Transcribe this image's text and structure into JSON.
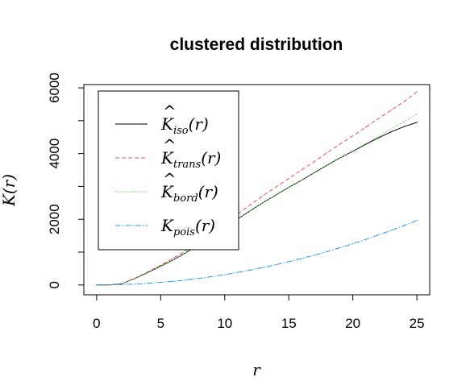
{
  "chart_data": {
    "type": "line",
    "title": "clustered distribution",
    "xlabel": "r",
    "ylabel": "K(r)",
    "xlim": [
      -1,
      26
    ],
    "ylim": [
      -300,
      6100
    ],
    "xticks": [
      0,
      5,
      10,
      15,
      20,
      25
    ],
    "yticks": [
      0,
      2000,
      4000,
      6000
    ],
    "grid": false,
    "legend_position": "top-left",
    "series": [
      {
        "name": "K̂iso(r)",
        "hat": true,
        "base": "K",
        "sub": "iso",
        "color": "#000000",
        "dash": "",
        "x": [
          0,
          1,
          2,
          3,
          4,
          5,
          6,
          7,
          8,
          9,
          10,
          11,
          12,
          13,
          14,
          15,
          16,
          17,
          18,
          19,
          20,
          21,
          22,
          23,
          24,
          25
        ],
        "y": [
          0,
          0,
          40,
          200,
          380,
          570,
          770,
          990,
          1230,
          1480,
          1750,
          2010,
          2260,
          2510,
          2740,
          2970,
          3190,
          3420,
          3650,
          3870,
          4070,
          4280,
          4480,
          4660,
          4820,
          4950
        ]
      },
      {
        "name": "K̂trans(r)",
        "hat": true,
        "base": "K",
        "sub": "trans",
        "color": "#df536b",
        "dash": "5,3",
        "x": [
          0,
          1,
          2,
          3,
          4,
          5,
          6,
          7,
          8,
          9,
          10,
          11,
          12,
          13,
          14,
          15,
          16,
          17,
          18,
          19,
          20,
          21,
          22,
          23,
          24,
          25
        ],
        "y": [
          0,
          0,
          40,
          210,
          400,
          600,
          820,
          1050,
          1310,
          1580,
          1880,
          2160,
          2440,
          2720,
          2980,
          3240,
          3500,
          3760,
          4030,
          4290,
          4540,
          4800,
          5060,
          5320,
          5580,
          5880
        ]
      },
      {
        "name": "K̂bord(r)",
        "hat": true,
        "base": "K",
        "sub": "bord",
        "color": "#61d04f",
        "dash": "1.5,2",
        "x": [
          0,
          1,
          2,
          3,
          4,
          5,
          6,
          7,
          8,
          9,
          10,
          11,
          12,
          13,
          14,
          15,
          16,
          17,
          18,
          19,
          20,
          21,
          22,
          23,
          24,
          25
        ],
        "y": [
          0,
          0,
          40,
          200,
          380,
          570,
          770,
          990,
          1230,
          1480,
          1750,
          2010,
          2260,
          2510,
          2740,
          2970,
          3190,
          3420,
          3650,
          3870,
          4080,
          4300,
          4520,
          4750,
          4970,
          5200
        ]
      },
      {
        "name": "Kpois(r)",
        "hat": false,
        "base": "K",
        "sub": "pois",
        "color": "#2297e6",
        "dash": "7,2,1.5,2",
        "x": [
          0,
          1,
          2,
          3,
          4,
          5,
          6,
          7,
          8,
          9,
          10,
          11,
          12,
          13,
          14,
          15,
          16,
          17,
          18,
          19,
          20,
          21,
          22,
          23,
          24,
          25
        ],
        "y": [
          0,
          3,
          13,
          28,
          50,
          79,
          113,
          154,
          201,
          254,
          314,
          380,
          452,
          531,
          616,
          707,
          804,
          908,
          1018,
          1134,
          1257,
          1385,
          1521,
          1662,
          1810,
          1963
        ]
      }
    ]
  }
}
